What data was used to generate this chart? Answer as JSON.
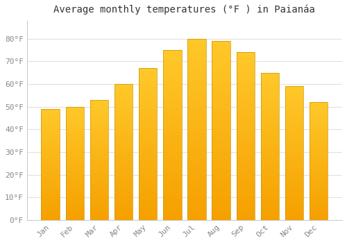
{
  "title": "Average monthly temperatures (°F ) in Paianáa",
  "months": [
    "Jan",
    "Feb",
    "Mar",
    "Apr",
    "May",
    "Jun",
    "Jul",
    "Aug",
    "Sep",
    "Oct",
    "Nov",
    "Dec"
  ],
  "values": [
    49,
    50,
    53,
    60,
    67,
    75,
    80,
    79,
    74,
    65,
    59,
    52
  ],
  "bar_color_top": "#FFC82A",
  "bar_color_bottom": "#F5A000",
  "bar_edge_color": "#C8960A",
  "background_color": "#FFFFFF",
  "plot_bg_color": "#FFFFFF",
  "grid_color": "#E0E0E0",
  "ylim": [
    0,
    88
  ],
  "yticks": [
    0,
    10,
    20,
    30,
    40,
    50,
    60,
    70,
    80
  ],
  "ytick_labels": [
    "0°F",
    "10°F",
    "20°F",
    "30°F",
    "40°F",
    "50°F",
    "60°F",
    "70°F",
    "80°F"
  ],
  "title_fontsize": 10,
  "tick_fontsize": 8,
  "tick_color": "#888888",
  "title_color": "#333333"
}
